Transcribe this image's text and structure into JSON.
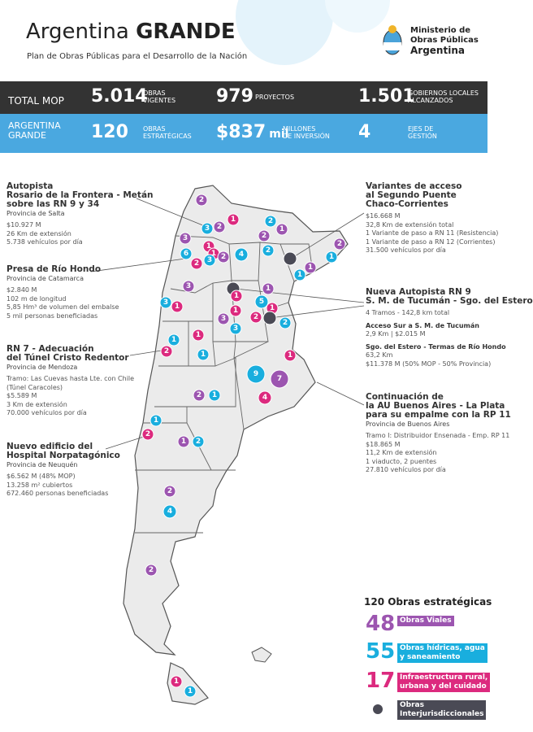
{
  "header": {
    "title_light": "Argentina",
    "title_bold": "GRANDE",
    "subtitle": "Plan de Obras Públicas para el Desarrollo de la Nación",
    "logo_lines": [
      "Ministerio de",
      "Obras Públicas",
      "Argentina"
    ]
  },
  "stats_total": {
    "label": "TOTAL MOP",
    "items": [
      {
        "value": "5.014",
        "caption": [
          "OBRAS",
          "VIGENTES"
        ]
      },
      {
        "value": "979",
        "caption": [
          "PROYECTOS"
        ]
      },
      {
        "value": "1.501",
        "caption": [
          "GOBIERNOS LOCALES",
          "ALCANZADOS"
        ]
      }
    ]
  },
  "stats_grande": {
    "label": [
      "ARGENTINA",
      "GRANDE"
    ],
    "items": [
      {
        "value": "120",
        "caption": [
          "OBRAS",
          "ESTRATÉGICAS"
        ]
      },
      {
        "value": "$837",
        "unit": "mil",
        "caption": [
          "MILLONES",
          "DE INVERSIÓN"
        ]
      },
      {
        "value": "4",
        "caption": [
          "EJES DE",
          "GESTIÓN"
        ]
      }
    ]
  },
  "projects": [
    {
      "title": [
        "Autopista",
        "Rosario de la Frontera - Metán",
        "sobre las RN 9 y 34"
      ],
      "province": "Provincia de Salta",
      "details": [
        "$10.927 M",
        "26 Km de extensión",
        "5.738 vehículos por día"
      ]
    },
    {
      "title": [
        "Presa de Río Hondo"
      ],
      "province": "Provincia de Catamarca",
      "details": [
        "$2.840 M",
        "102 m de longitud",
        "5,85 Hm³ de volumen del embalse",
        "5 mil personas beneficiadas"
      ]
    },
    {
      "title": [
        "RN 7 - Adecuación",
        "del Túnel Cristo Redentor"
      ],
      "province": "Provincia de Mendoza",
      "details": [
        "Tramo: Las Cuevas hasta Lte. con Chile",
        "(Túnel Caracoles)",
        "$5.589 M",
        "3 Km de extensión",
        "70.000 vehículos por día"
      ]
    },
    {
      "title": [
        "Nuevo edificio del",
        "Hospital Norpatagónico"
      ],
      "province": "Provincia de Neuquén",
      "details": [
        "$6.562 M (48% MOP)",
        "13.258 m² cubiertos",
        "672.460 personas beneficiadas"
      ]
    },
    {
      "title": [
        "Variantes de acceso",
        "al Segundo Puente",
        "Chaco-Corrientes"
      ],
      "details": [
        "$16.668 M",
        "32,8 Km de extensión total",
        "1 Variante de paso a RN 11 (Resistencia)",
        "1 Variante de paso a RN 12 (Corrientes)",
        "31.500 vehículos por día"
      ]
    },
    {
      "title": [
        "Nueva Autopista RN 9",
        "S. M. de Tucumán - Sgo. del Estero"
      ],
      "details": [
        "4 Tramos - 142,8 km total",
        "Acceso Sur a S. M. de Tucumán",
        "2,9 Km | $2.015 M",
        "Sgo. del Estero - Termas de Río Hondo",
        "63,2 Km",
        "$11.378 M (50% MOP - 50% Provincia)"
      ]
    },
    {
      "title": [
        "Continuación de",
        "la AU Buenos Aires - La Plata",
        "para su empalme con la RP 11"
      ],
      "province": "Provincia de Buenos Aires",
      "details": [
        "Tramo I: Distribuidor Ensenada - Emp. RP 11",
        "$18.865 M",
        "11,2 Km de extensión",
        "1 viaducto, 2 puentes",
        "27.810 vehículos por día"
      ]
    }
  ],
  "legend": {
    "title": "120 Obras estratégicas",
    "items": [
      {
        "count": "48",
        "label": [
          "Obras Viales"
        ],
        "color": "#9c55b0"
      },
      {
        "count": "55",
        "label": [
          "Obras hídricas, agua",
          "y saneamiento"
        ],
        "color": "#19aede"
      },
      {
        "count": "17",
        "label": [
          "Infraestructura rural,",
          "urbana y del cuidado"
        ],
        "color": "#dc2a7e"
      },
      {
        "label": [
          "Obras",
          "Interjurisdiccionales"
        ],
        "color": "#4a4a55"
      }
    ]
  },
  "map": {
    "markers": [
      {
        "label": "2",
        "color": "#9c55b0"
      },
      {
        "label": "1",
        "color": "#dc2a7e"
      },
      {
        "label": "2",
        "color": "#9c55b0"
      },
      {
        "label": "3",
        "color": "#19aede"
      },
      {
        "label": "2",
        "color": "#19aede"
      },
      {
        "label": "1",
        "color": "#9c55b0"
      },
      {
        "label": "2",
        "color": "#9c55b0"
      },
      {
        "label": "3",
        "color": "#9c55b0"
      },
      {
        "label": "1",
        "color": "#dc2a7e"
      },
      {
        "label": "1",
        "color": "#dc2a7e"
      },
      {
        "label": "2",
        "color": "#9c55b0"
      },
      {
        "label": "6",
        "color": "#19aede"
      },
      {
        "label": "4",
        "color": "#19aede"
      },
      {
        "label": "2",
        "color": "#19aede"
      },
      {
        "color": "#4a4a55"
      },
      {
        "label": "2",
        "color": "#9c55b0"
      },
      {
        "label": "1",
        "color": "#19aede"
      },
      {
        "label": "1",
        "color": "#9c55b0"
      },
      {
        "label": "2",
        "color": "#dc2a7e"
      },
      {
        "label": "3",
        "color": "#19aede"
      },
      {
        "label": "1",
        "color": "#19aede"
      },
      {
        "label": "3",
        "color": "#9c55b0"
      },
      {
        "color": "#4a4a55"
      },
      {
        "label": "1",
        "color": "#9c55b0"
      },
      {
        "label": "5",
        "color": "#19aede"
      },
      {
        "label": "3",
        "color": "#19aede"
      },
      {
        "label": "1",
        "color": "#dc2a7e"
      },
      {
        "label": "1",
        "color": "#dc2a7e"
      },
      {
        "label": "1",
        "color": "#dc2a7e"
      },
      {
        "label": "1",
        "color": "#dc2a7e"
      },
      {
        "label": "3",
        "color": "#9c55b0"
      },
      {
        "label": "2",
        "color": "#dc2a7e"
      },
      {
        "color": "#4a4a55"
      },
      {
        "label": "2",
        "color": "#19aede"
      },
      {
        "label": "3",
        "color": "#19aede"
      },
      {
        "label": "2",
        "color": "#dc2a7e"
      },
      {
        "label": "1",
        "color": "#19aede"
      },
      {
        "label": "1",
        "color": "#19aede"
      },
      {
        "label": "1",
        "color": "#dc2a7e"
      },
      {
        "label": "1",
        "color": "#dc2a7e"
      },
      {
        "label": "9",
        "color": "#19aede"
      },
      {
        "label": "7",
        "color": "#9c55b0"
      },
      {
        "label": "4",
        "color": "#dc2a7e"
      },
      {
        "label": "2",
        "color": "#9c55b0"
      },
      {
        "label": "1",
        "color": "#19aede"
      },
      {
        "label": "1",
        "color": "#19aede"
      },
      {
        "label": "2",
        "color": "#dc2a7e"
      },
      {
        "label": "1",
        "color": "#9c55b0"
      },
      {
        "label": "2",
        "color": "#19aede"
      },
      {
        "label": "2",
        "color": "#9c55b0"
      },
      {
        "label": "4",
        "color": "#19aede"
      },
      {
        "label": "2",
        "color": "#9c55b0"
      },
      {
        "label": "1",
        "color": "#dc2a7e"
      },
      {
        "label": "1",
        "color": "#19aede"
      }
    ]
  }
}
